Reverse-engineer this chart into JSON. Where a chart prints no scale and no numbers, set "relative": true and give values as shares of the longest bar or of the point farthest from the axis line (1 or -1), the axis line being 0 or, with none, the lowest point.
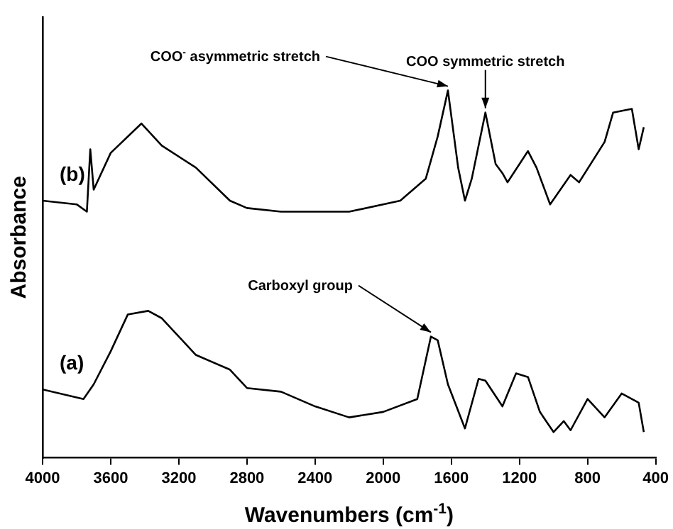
{
  "chart_data": {
    "type": "line",
    "xlabel": "Wavenumbers (cm$^{-1}$)",
    "ylabel": "Absorbance",
    "relative": true,
    "tick_labels": "x",
    "legend": false,
    "grid": false,
    "marker": "none",
    "line_style": "solid",
    "xlim": [
      4000,
      400
    ],
    "xticks": [
      4000,
      3600,
      3200,
      2800,
      2400,
      2000,
      1600,
      1200,
      800,
      400
    ],
    "annotations": [
      {
        "text": "COO$^{-}$ asymmetric stretch",
        "x": 1620,
        "y": 1.0
      },
      {
        "text": "COO symmetric stretch",
        "x": 1400,
        "y": 0.94
      },
      {
        "text": "Carboxyl group",
        "x": 1720,
        "y": 0.33
      }
    ],
    "series": [
      {
        "name": "(b)",
        "color": "#000000",
        "x": [
          4000,
          3800,
          3740,
          3720,
          3700,
          3600,
          3420,
          3300,
          3100,
          2900,
          2800,
          2600,
          2200,
          1900,
          1750,
          1680,
          1620,
          1560,
          1520,
          1480,
          1400,
          1340,
          1300,
          1270,
          1150,
          1100,
          1020,
          900,
          850,
          700,
          650,
          540,
          500,
          470
        ],
        "values": [
          0.7,
          0.69,
          0.67,
          0.84,
          0.73,
          0.83,
          0.91,
          0.85,
          0.79,
          0.7,
          0.68,
          0.67,
          0.67,
          0.7,
          0.76,
          0.875,
          1.0,
          0.79,
          0.7,
          0.76,
          0.94,
          0.8,
          0.775,
          0.75,
          0.835,
          0.79,
          0.69,
          0.77,
          0.75,
          0.86,
          0.94,
          0.95,
          0.84,
          0.9
        ]
      },
      {
        "name": "(a)",
        "color": "#000000",
        "x": [
          4000,
          3760,
          3700,
          3600,
          3500,
          3380,
          3300,
          3100,
          2900,
          2800,
          2600,
          2400,
          2200,
          2000,
          1800,
          1720,
          1680,
          1620,
          1520,
          1440,
          1400,
          1300,
          1220,
          1150,
          1080,
          1000,
          940,
          900,
          800,
          700,
          600,
          500,
          470
        ],
        "values": [
          0.186,
          0.16,
          0.2,
          0.29,
          0.39,
          0.4,
          0.38,
          0.28,
          0.24,
          0.19,
          0.18,
          0.14,
          0.11,
          0.125,
          0.16,
          0.33,
          0.32,
          0.2,
          0.08,
          0.215,
          0.21,
          0.14,
          0.23,
          0.22,
          0.125,
          0.07,
          0.1,
          0.075,
          0.16,
          0.11,
          0.175,
          0.15,
          0.07
        ]
      }
    ]
  }
}
